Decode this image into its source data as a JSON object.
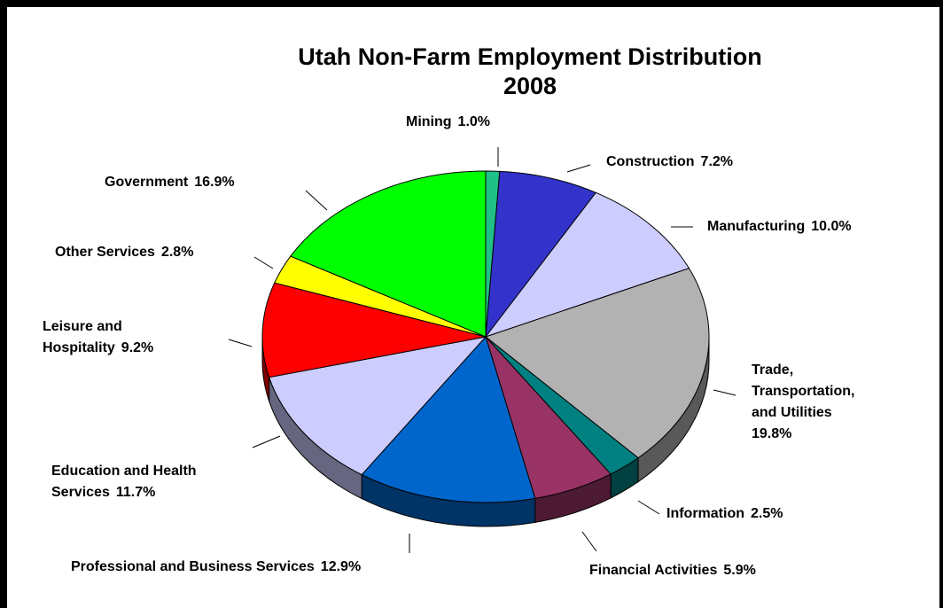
{
  "chart_data": {
    "type": "pie3d",
    "title": "Utah Non-Farm Employment Distribution\n2008",
    "categories": [
      "Mining",
      "Construction",
      "Manufacturing",
      "Trade,\nTransportation,\nand Utilities",
      "Information",
      "Financial Activities",
      "Professional and Business Services",
      "Education and Health\nServices",
      "Leisure and\nHospitality",
      "Other Services",
      "Government"
    ],
    "values": [
      1.0,
      7.2,
      10.0,
      19.8,
      2.5,
      5.9,
      12.9,
      11.7,
      9.2,
      2.8,
      16.9
    ],
    "value_labels": [
      "1.0%",
      "7.2%",
      "10.0%",
      "19.8%",
      "2.5%",
      "5.9%",
      "12.9%",
      "11.7%",
      "9.2%",
      "2.8%",
      "16.9%"
    ],
    "colors": [
      "#20c088",
      "#3333cc",
      "#ccccff",
      "#b2b2b2",
      "#008080",
      "#993366",
      "#0066cc",
      "#ccccff",
      "#ff0000",
      "#ffff00",
      "#00ff00"
    ]
  }
}
